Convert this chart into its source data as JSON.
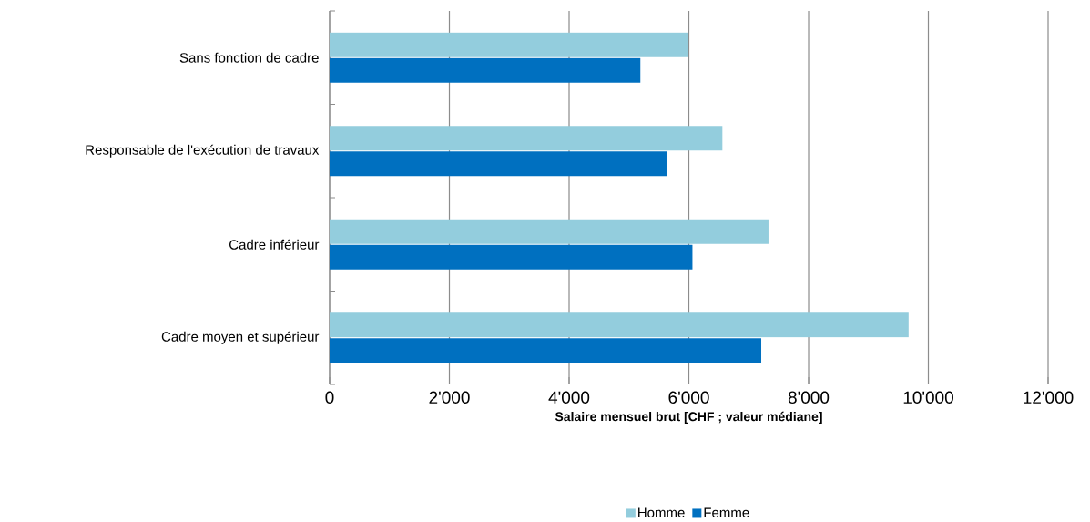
{
  "chart_data": {
    "type": "bar",
    "orientation": "horizontal",
    "xlabel": "Salaire mensuel brut [CHF ; valeur médiane]",
    "categories": [
      "Sans fonction de cadre",
      "Responsable de l'exécution de travaux",
      "Cadre inférieur",
      "Cadre moyen et supérieur"
    ],
    "series": [
      {
        "name": "Homme",
        "color": "#93cddd",
        "values": [
          5990,
          6560,
          7330,
          9670
        ]
      },
      {
        "name": "Femme",
        "color": "#0070c0",
        "values": [
          5190,
          5640,
          6060,
          7210
        ]
      }
    ],
    "xlim": [
      0,
      12000
    ],
    "xticks": [
      0,
      {
        "value": 2000,
        "label": "2'000"
      },
      {
        "value": 4000,
        "label": "4'000"
      },
      {
        "value": 6000,
        "label": "6'000"
      },
      {
        "value": 8000,
        "label": "8'000"
      },
      {
        "value": 10000,
        "label": "10'000"
      },
      {
        "value": 12000,
        "label": "12'000"
      }
    ],
    "grid": "x",
    "legend": "bottom"
  }
}
